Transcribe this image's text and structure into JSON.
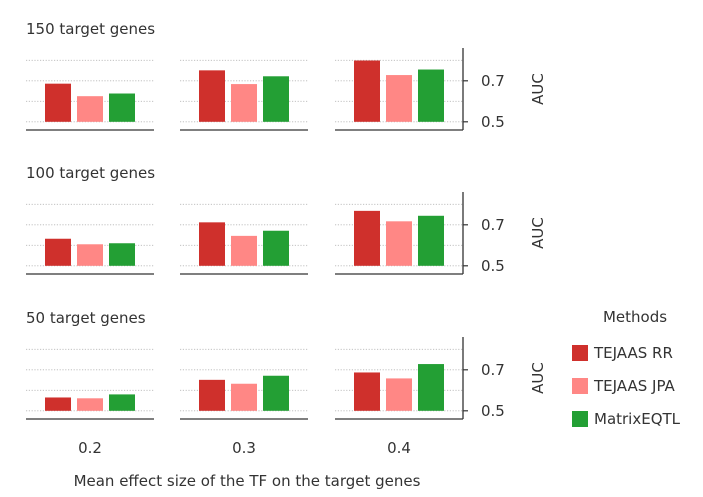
{
  "chart_data": {
    "type": "bar",
    "panel_titles": [
      "150 target genes",
      "100 target genes",
      "50 target genes"
    ],
    "column_labels": [
      "0.2",
      "0.3",
      "0.4"
    ],
    "xlabel": "Mean effect size of the TF on the target genes",
    "ylabel": "AUC",
    "ylim": [
      0.46,
      0.86
    ],
    "yticks": [
      0.5,
      0.7
    ],
    "ytick_labels": [
      "0.5",
      "0.7"
    ],
    "grid": "horizontal dotted",
    "legend": {
      "title": "Methods",
      "placement": "right",
      "entries": [
        {
          "name": "TEJAAS RR",
          "color": "#cf302c"
        },
        {
          "name": "TEJAAS JPA",
          "color": "#ff8785"
        },
        {
          "name": "MatrixEQTL",
          "color": "#239f34"
        }
      ]
    },
    "rows": [
      {
        "title": "150 target genes",
        "groups": [
          {
            "category": "0.2",
            "values": [
              0.686,
              0.625,
              0.638
            ]
          },
          {
            "category": "0.3",
            "values": [
              0.751,
              0.684,
              0.722
            ]
          },
          {
            "category": "0.4",
            "values": [
              0.799,
              0.728,
              0.755
            ]
          }
        ]
      },
      {
        "title": "100 target genes",
        "groups": [
          {
            "category": "0.2",
            "values": [
              0.632,
              0.605,
              0.61
            ]
          },
          {
            "category": "0.3",
            "values": [
              0.712,
              0.646,
              0.671
            ]
          },
          {
            "category": "0.4",
            "values": [
              0.768,
              0.717,
              0.744
            ]
          }
        ]
      },
      {
        "title": "50 target genes",
        "groups": [
          {
            "category": "0.2",
            "values": [
              0.565,
              0.561,
              0.58
            ]
          },
          {
            "category": "0.3",
            "values": [
              0.651,
              0.632,
              0.671
            ]
          },
          {
            "category": "0.4",
            "values": [
              0.687,
              0.658,
              0.728
            ]
          }
        ]
      }
    ]
  }
}
